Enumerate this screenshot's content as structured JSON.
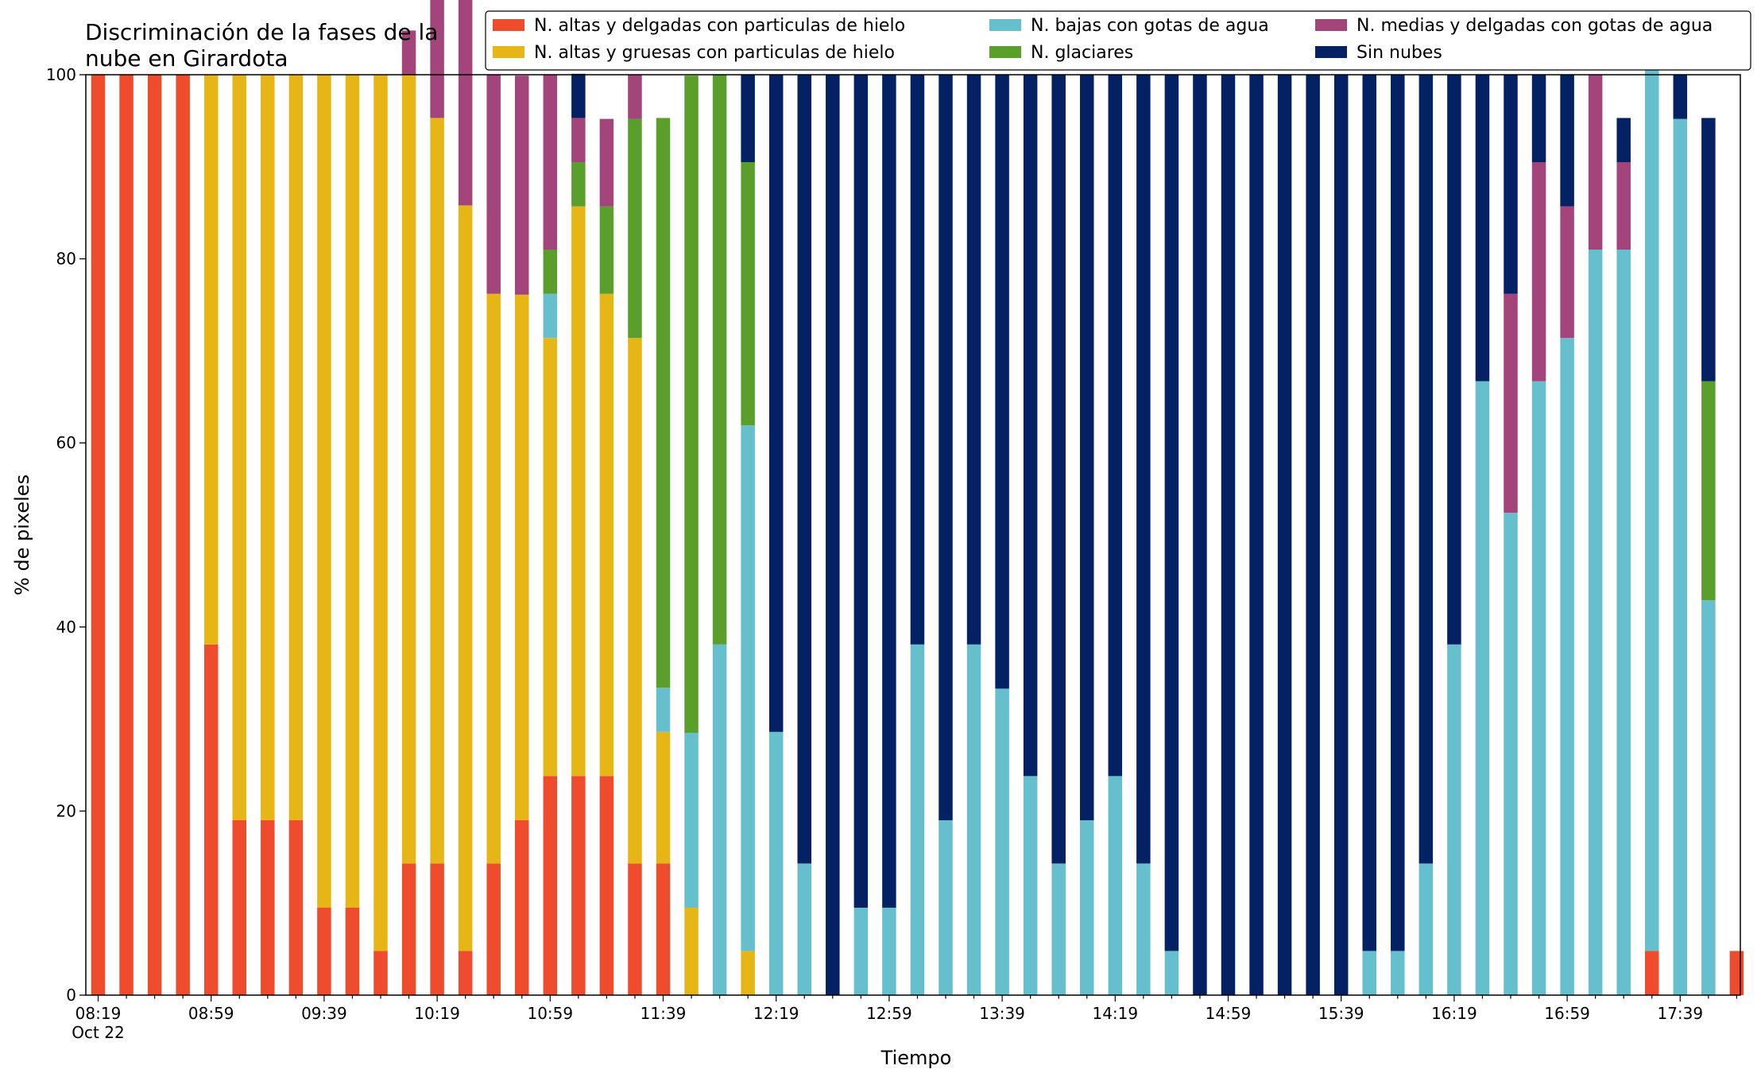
{
  "chart_data": {
    "type": "bar",
    "stacked": true,
    "title_lines": [
      "Discriminación de la fases de la",
      "nube en Girardota"
    ],
    "xlabel": "Tiempo",
    "ylabel": "% de pixeles",
    "ylim": [
      0,
      100
    ],
    "yticks": [
      0,
      20,
      40,
      60,
      80,
      100
    ],
    "grid": false,
    "legend_placement": "top-right",
    "x_start": "08:19",
    "x_step_minutes": 10,
    "x_tick_labels": [
      {
        "index": 0,
        "label": "08:19",
        "sublabel": "Oct 22"
      },
      {
        "index": 4,
        "label": "08:59"
      },
      {
        "index": 8,
        "label": "09:39"
      },
      {
        "index": 12,
        "label": "10:19"
      },
      {
        "index": 16,
        "label": "10:59"
      },
      {
        "index": 20,
        "label": "11:39"
      },
      {
        "index": 24,
        "label": "12:19"
      },
      {
        "index": 28,
        "label": "12:59"
      },
      {
        "index": 32,
        "label": "13:39"
      },
      {
        "index": 36,
        "label": "14:19"
      },
      {
        "index": 40,
        "label": "14:59"
      },
      {
        "index": 44,
        "label": "15:39"
      },
      {
        "index": 48,
        "label": "16:19"
      },
      {
        "index": 52,
        "label": "16:59"
      },
      {
        "index": 56,
        "label": "17:39"
      }
    ],
    "series": [
      {
        "name": "N. altas y delgadas con particulas de hielo",
        "color": "#ee4c2c",
        "values": [
          100,
          100,
          100,
          100,
          38.1,
          19,
          19,
          19,
          9.5,
          9.5,
          4.8,
          14.3,
          14.3,
          4.8,
          14.3,
          19,
          23.8,
          23.8,
          23.8,
          14.3,
          14.3,
          0,
          0,
          0,
          0,
          0,
          0,
          0,
          0,
          0,
          0,
          0,
          0,
          0,
          0,
          0,
          0,
          0,
          0,
          0,
          0,
          0,
          0,
          0,
          0,
          0,
          0,
          0,
          0,
          0,
          0,
          0,
          0,
          0,
          0,
          4.8,
          0,
          0,
          4.8
        ]
      },
      {
        "name": "N. altas y gruesas con particulas de hielo",
        "color": "#e6b616",
        "values": [
          0,
          0,
          0,
          0,
          61.9,
          81,
          81,
          81,
          90.5,
          90.5,
          95.2,
          85.7,
          81,
          81,
          61.9,
          57.1,
          47.6,
          61.9,
          52.4,
          57.1,
          14.3,
          9.5,
          0,
          4.8,
          0,
          0,
          0,
          0,
          0,
          0,
          0,
          0,
          0,
          0,
          0,
          0,
          0,
          0,
          0,
          0,
          0,
          0,
          0,
          0,
          0,
          0,
          0,
          0,
          0,
          0,
          0,
          0,
          0,
          0,
          0,
          0,
          0,
          0,
          0
        ]
      },
      {
        "name": "N. bajas con gotas de agua",
        "color": "#66bfcc",
        "values": [
          0,
          0,
          0,
          0,
          0,
          0,
          0,
          0,
          0,
          0,
          0,
          0,
          0,
          0,
          0,
          0,
          4.8,
          0,
          0,
          0,
          4.8,
          19,
          38.1,
          57.1,
          28.6,
          14.3,
          0,
          9.5,
          9.5,
          38.1,
          19,
          38.1,
          33.3,
          23.8,
          14.3,
          19,
          23.8,
          14.3,
          4.8,
          0,
          0,
          0,
          0,
          0,
          0,
          4.8,
          4.8,
          14.3,
          38.1,
          66.7,
          52.4,
          66.7,
          71.4,
          81,
          81,
          100,
          95.2,
          42.9,
          0
        ]
      },
      {
        "name": "N. glaciares",
        "color": "#5a9f2c",
        "values": [
          0,
          0,
          0,
          0,
          0,
          0,
          0,
          0,
          0,
          0,
          0,
          0,
          0,
          0,
          0,
          0,
          4.8,
          4.8,
          9.5,
          23.8,
          61.9,
          71.4,
          61.9,
          28.6,
          0,
          0,
          0,
          0,
          0,
          0,
          0,
          0,
          0,
          0,
          0,
          0,
          0,
          0,
          0,
          0,
          0,
          0,
          0,
          0,
          0,
          0,
          0,
          0,
          0,
          0,
          0,
          0,
          0,
          0,
          0,
          0,
          0,
          23.8,
          0
        ]
      },
      {
        "name": "N. medias y delgadas con gotas de agua",
        "color": "#a3447b",
        "values": [
          0,
          0,
          0,
          0,
          0,
          0,
          0,
          0,
          0,
          0,
          0,
          4.8,
          14.3,
          23.8,
          23.8,
          23.8,
          19,
          4.8,
          9.5,
          4.8,
          0,
          0,
          0,
          0,
          0,
          0,
          0,
          0,
          0,
          0,
          0,
          0,
          0,
          0,
          0,
          0,
          0,
          0,
          0,
          0,
          0,
          0,
          0,
          0,
          0,
          0,
          0,
          0,
          0,
          0,
          23.8,
          23.8,
          14.3,
          19,
          9.5,
          0,
          0,
          0,
          0
        ]
      },
      {
        "name": "Sin nubes",
        "color": "#032163",
        "values": [
          0,
          0,
          0,
          0,
          0,
          0,
          0,
          0,
          0,
          0,
          0,
          0,
          0,
          0,
          0,
          0,
          0,
          4.8,
          0,
          0,
          0,
          0,
          0,
          9.5,
          71.4,
          85.7,
          100,
          90.5,
          90.5,
          61.9,
          81,
          61.9,
          66.7,
          76.2,
          85.7,
          81,
          76.2,
          85.7,
          95.2,
          100,
          100,
          100,
          100,
          100,
          100,
          95.2,
          95.2,
          85.7,
          61.9,
          33.3,
          23.8,
          9.5,
          14.3,
          0,
          4.8,
          0,
          4.8,
          28.6,
          0
        ]
      }
    ]
  }
}
